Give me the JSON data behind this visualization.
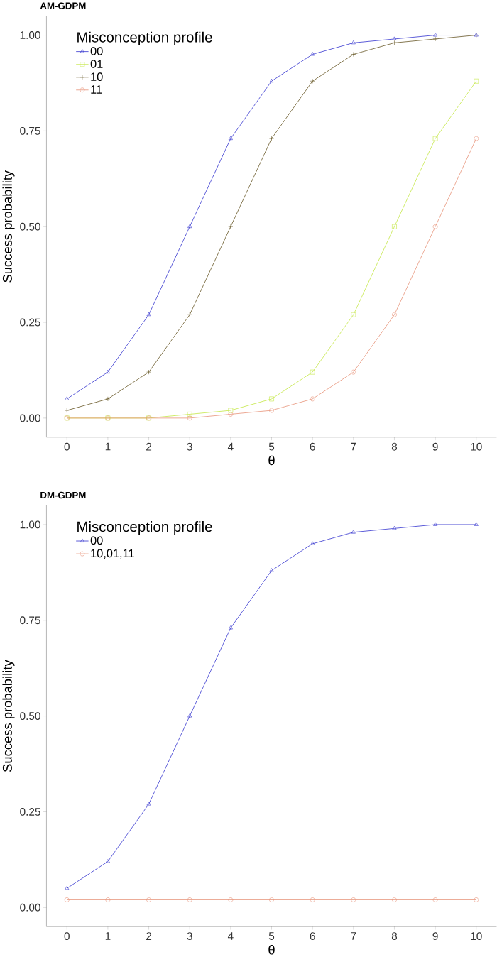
{
  "chart_data": [
    {
      "type": "line",
      "title": "AM-GDPM",
      "xlabel": "θ",
      "ylabel": "Success probability",
      "legend_title": "Misconception profile",
      "legend": "top left",
      "x": [
        0,
        1,
        2,
        3,
        4,
        5,
        6,
        7,
        8,
        9,
        10
      ],
      "series": [
        {
          "name": "00",
          "color": "#3a3ad0",
          "marker": "triangle",
          "values": [
            0.05,
            0.12,
            0.27,
            0.5,
            0.73,
            0.88,
            0.95,
            0.98,
            0.99,
            1.0,
            1.0
          ]
        },
        {
          "name": "01",
          "color": "#c5e84a",
          "marker": "square",
          "values": [
            0.0,
            0.0,
            0.0,
            0.01,
            0.02,
            0.05,
            0.12,
            0.27,
            0.5,
            0.73,
            0.88
          ]
        },
        {
          "name": "10",
          "color": "#6b5b2b",
          "marker": "cross",
          "values": [
            0.02,
            0.05,
            0.12,
            0.27,
            0.5,
            0.73,
            0.88,
            0.95,
            0.98,
            0.99,
            1.0
          ]
        },
        {
          "name": "11",
          "color": "#e8957c",
          "marker": "circle",
          "values": [
            0.0,
            0.0,
            0.0,
            0.0,
            0.01,
            0.02,
            0.05,
            0.12,
            0.27,
            0.5,
            0.73
          ]
        }
      ],
      "xlim": [
        -0.5,
        10.5
      ],
      "ylim": [
        -0.05,
        1.05
      ],
      "xticks": [
        0,
        1,
        2,
        3,
        4,
        5,
        6,
        7,
        8,
        9,
        10
      ],
      "yticks": [
        {
          "value": 0,
          "label": "0.00"
        },
        {
          "value": 0.25,
          "label": "0.25"
        },
        {
          "value": 0.5,
          "label": "0.50"
        },
        {
          "value": 0.75,
          "label": "0.75"
        },
        {
          "value": 1,
          "label": "1.00"
        }
      ]
    },
    {
      "type": "line",
      "title": "DM-GDPM",
      "xlabel": "θ",
      "ylabel": "Success probability",
      "legend_title": "Misconception profile",
      "legend": "top left",
      "x": [
        0,
        1,
        2,
        3,
        4,
        5,
        6,
        7,
        8,
        9,
        10
      ],
      "series": [
        {
          "name": "00",
          "color": "#3a3ad0",
          "marker": "triangle",
          "values": [
            0.05,
            0.12,
            0.27,
            0.5,
            0.73,
            0.88,
            0.95,
            0.98,
            0.99,
            1.0,
            1.0
          ]
        },
        {
          "name": "10,01,11",
          "color": "#e8957c",
          "marker": "circle",
          "values": [
            0.02,
            0.02,
            0.02,
            0.02,
            0.02,
            0.02,
            0.02,
            0.02,
            0.02,
            0.02,
            0.02
          ]
        }
      ],
      "xlim": [
        -0.5,
        10.5
      ],
      "ylim": [
        -0.05,
        1.05
      ],
      "xticks": [
        0,
        1,
        2,
        3,
        4,
        5,
        6,
        7,
        8,
        9,
        10
      ],
      "yticks": [
        {
          "value": 0,
          "label": "0.00"
        },
        {
          "value": 0.25,
          "label": "0.25"
        },
        {
          "value": 0.5,
          "label": "0.50"
        },
        {
          "value": 0.75,
          "label": "0.75"
        },
        {
          "value": 1,
          "label": "1.00"
        }
      ]
    }
  ]
}
